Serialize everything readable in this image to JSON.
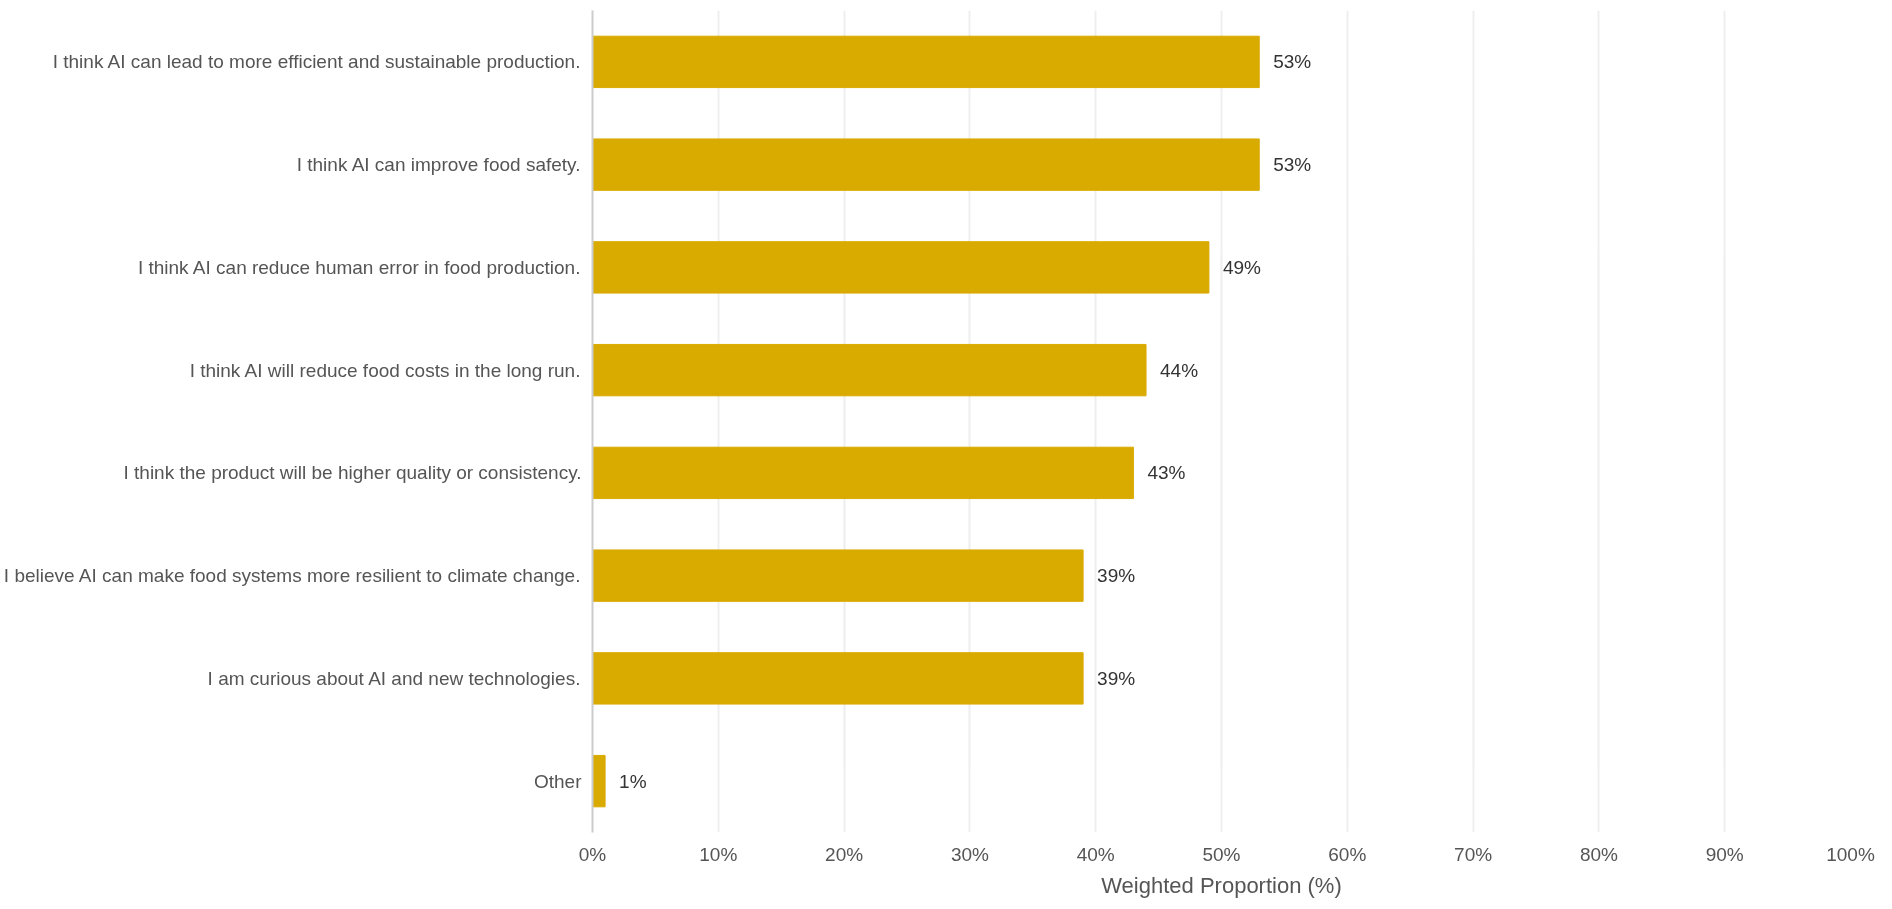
{
  "chart_data": {
    "type": "bar",
    "orientation": "horizontal",
    "xlabel": "Weighted Proportion (%)",
    "categories": [
      "I think AI can lead to more efficient and sustainable production.",
      "I think AI can improve food safety.",
      "I think AI can reduce human error in food production.",
      "I think AI will reduce food costs in the long run.",
      "I think the product will be higher quality or consistency.",
      "I believe AI can make food systems more resilient to climate change.",
      "I am curious about AI and new technologies.",
      "Other"
    ],
    "values": [
      53,
      53,
      49,
      44,
      43,
      39,
      39,
      1
    ],
    "value_labels": [
      "53%",
      "53%",
      "49%",
      "44%",
      "43%",
      "39%",
      "39%",
      "1%"
    ],
    "color": "#d9aa00",
    "xlim": [
      0,
      100
    ],
    "xticks": [
      {
        "value": 0,
        "label": "0%"
      },
      {
        "value": 10,
        "label": "10%"
      },
      {
        "value": 20,
        "label": "20%"
      },
      {
        "value": 30,
        "label": "30%"
      },
      {
        "value": 40,
        "label": "40%"
      },
      {
        "value": 50,
        "label": "50%"
      },
      {
        "value": 60,
        "label": "60%"
      },
      {
        "value": 70,
        "label": "70%"
      },
      {
        "value": 80,
        "label": "80%"
      },
      {
        "value": 90,
        "label": "90%"
      },
      {
        "value": 100,
        "label": "100%"
      }
    ],
    "grid": "x"
  }
}
